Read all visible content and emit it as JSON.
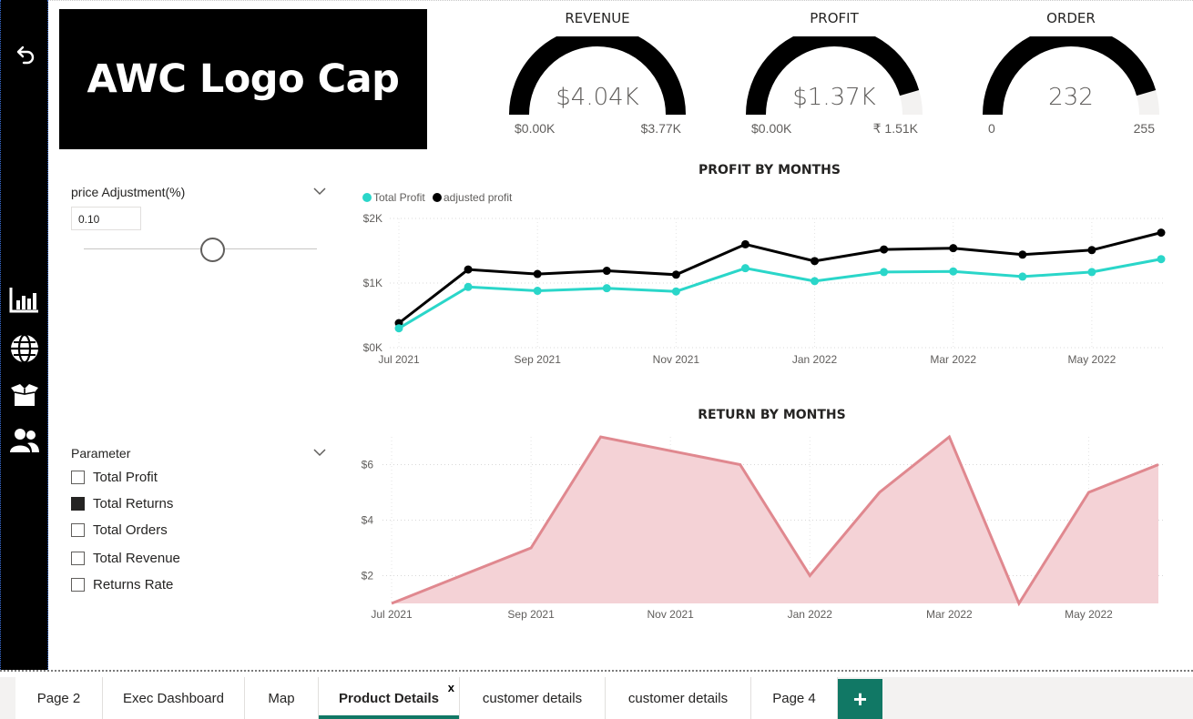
{
  "logo": {
    "text": "AWC Logo Cap"
  },
  "nav_rail": {
    "icons": [
      "back-arrow-icon",
      "bar-chart-icon",
      "globe-icon",
      "box-icon",
      "users-icon"
    ]
  },
  "gauges": [
    {
      "title": "REVENUE",
      "value": "$4.04K",
      "min": "$0.00K",
      "max": "$3.77K",
      "fill_fraction": 1.0
    },
    {
      "title": "PROFIT",
      "value": "$1.37K",
      "min": "$0.00K",
      "max": "₹ 1.51K",
      "fill_fraction": 0.91
    },
    {
      "title": "ORDER",
      "value": "232",
      "min": "0",
      "max": "255",
      "fill_fraction": 0.91
    }
  ],
  "price_slicer": {
    "label": "price Adjustment(%)",
    "value": "0.10",
    "slider_fraction": 0.55
  },
  "parameter_slicer": {
    "label": "Parameter",
    "items": [
      {
        "label": "Total Profit",
        "checked": false
      },
      {
        "label": "Total Returns",
        "checked": true
      },
      {
        "label": "Total Orders",
        "checked": false
      },
      {
        "label": "Total Revenue",
        "checked": false
      },
      {
        "label": "Returns Rate",
        "checked": false
      }
    ]
  },
  "profit_chart_title": "PROFIT BY MONTHS",
  "return_chart_title": "RETURN BY MONTHS",
  "colors": {
    "accent": "#117865",
    "total_profit": "#2ad6c9",
    "adjusted_profit": "#000000",
    "returns_line": "#e0888f",
    "returns_fill": "#f4d2d6"
  },
  "chart_data": [
    {
      "type": "line",
      "title": "PROFIT BY MONTHS",
      "x": [
        "Jul 2021",
        "Aug 2021",
        "Sep 2021",
        "Oct 2021",
        "Nov 2021",
        "Dec 2021",
        "Jan 2022",
        "Feb 2022",
        "Mar 2022",
        "Apr 2022",
        "May 2022",
        "Jun 2022"
      ],
      "x_tick_labels": [
        "Jul 2021",
        "Sep 2021",
        "Nov 2021",
        "Jan 2022",
        "Mar 2022",
        "May 2022"
      ],
      "y_tick_labels": [
        "$0K",
        "$1K",
        "$2K"
      ],
      "ylim": [
        0,
        2000
      ],
      "series": [
        {
          "name": "Total Profit",
          "values": [
            300,
            940,
            880,
            920,
            870,
            1230,
            1030,
            1170,
            1180,
            1100,
            1170,
            1370
          ]
        },
        {
          "name": "adjusted profit",
          "values": [
            380,
            1210,
            1140,
            1190,
            1130,
            1600,
            1340,
            1520,
            1540,
            1440,
            1510,
            1780
          ]
        }
      ],
      "legend": "top-left",
      "grid": true
    },
    {
      "type": "area",
      "title": "RETURN BY MONTHS",
      "x": [
        "Jul 2021",
        "Aug 2021",
        "Sep 2021",
        "Oct 2021",
        "Nov 2021",
        "Dec 2021",
        "Jan 2022",
        "Feb 2022",
        "Mar 2022",
        "Apr 2022",
        "May 2022",
        "Jun 2022"
      ],
      "x_tick_labels": [
        "Jul 2021",
        "Sep 2021",
        "Nov 2021",
        "Jan 2022",
        "Mar 2022",
        "May 2022"
      ],
      "y_tick_labels": [
        "$2",
        "$4",
        "$6"
      ],
      "ylim": [
        1,
        7
      ],
      "series": [
        {
          "values": [
            1,
            2,
            3,
            7,
            6.5,
            6,
            2,
            5,
            7,
            1,
            5,
            6
          ]
        }
      ],
      "grid": true
    }
  ],
  "tabs": [
    {
      "label": "Page 2"
    },
    {
      "label": "Exec Dashboard"
    },
    {
      "label": "Map"
    },
    {
      "label": "Product Details",
      "active": true,
      "close": "x"
    },
    {
      "label": "customer details"
    },
    {
      "label": "customer details"
    },
    {
      "label": "Page 4"
    }
  ],
  "add_tab_label": "+"
}
